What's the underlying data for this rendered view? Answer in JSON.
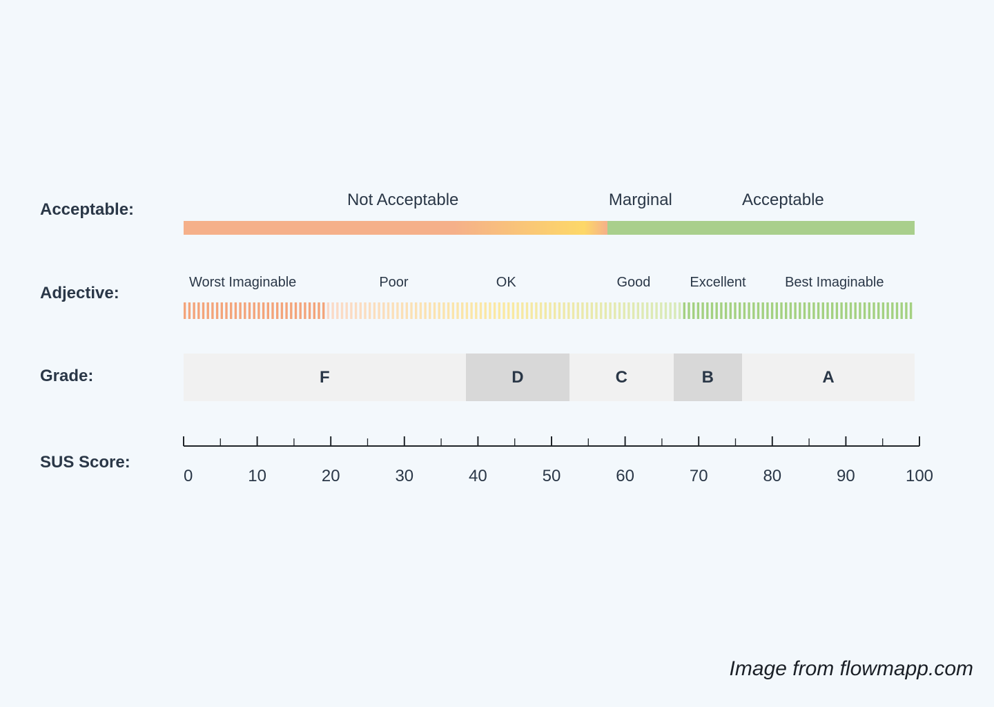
{
  "rows": {
    "acceptable_label": "Acceptable:",
    "adjective_label": "Adjective:",
    "grade_label": "Grade:",
    "score_label": "SUS Score:"
  },
  "acceptability": {
    "zones": [
      {
        "label": "Not Acceptable",
        "center": 30
      },
      {
        "label": "Marginal",
        "center": 62.5
      },
      {
        "label": "Acceptable",
        "center": 82
      },
      {
        "label": "",
        "center": 0
      }
    ],
    "marginal_start": 50,
    "acceptable_start": 58,
    "not_acceptable_color": "#f5b08a",
    "marginal_peak_color": "#fdd868",
    "acceptable_color": "#a9cf8c"
  },
  "adjectives": {
    "items": [
      {
        "label": "Worst Imaginable",
        "start": 0
      },
      {
        "label": "Poor",
        "start": 26
      },
      {
        "label": "OK",
        "start": 42
      },
      {
        "label": "Good",
        "start": 58.5
      },
      {
        "label": "Excellent",
        "start": 68.5
      },
      {
        "label": "Best Imaginable",
        "start": 81.5
      }
    ],
    "worst_end": 19,
    "good_end": 68,
    "worst_color": "#f3a47a",
    "faint_warm_color": "#fbd9c8",
    "faint_yellow_color": "#fbe9a0",
    "faint_green_color": "#d7eab9",
    "best_color": "#a4d181"
  },
  "grades": {
    "items": [
      {
        "label": "F",
        "from": 0,
        "to": 38.6,
        "shade": "light"
      },
      {
        "label": "D",
        "from": 38.6,
        "to": 52.8,
        "shade": "dark"
      },
      {
        "label": "C",
        "from": 52.8,
        "to": 67,
        "shade": "light"
      },
      {
        "label": "B",
        "from": 67,
        "to": 76.4,
        "shade": "dark"
      },
      {
        "label": "A",
        "from": 76.4,
        "to": 100,
        "shade": "light"
      }
    ],
    "light_color": "#f1f1f1",
    "dark_color": "#d8d8d8"
  },
  "score_axis": {
    "min": 0,
    "max": 100,
    "major_ticks": [
      0,
      10,
      20,
      30,
      40,
      50,
      60,
      70,
      80,
      90,
      100
    ],
    "tick_labels": [
      "0",
      "10",
      "20",
      "30",
      "40",
      "50",
      "60",
      "70",
      "80",
      "90",
      "100"
    ],
    "minor_step": 5
  },
  "credit": "Image from flowmapp.com"
}
